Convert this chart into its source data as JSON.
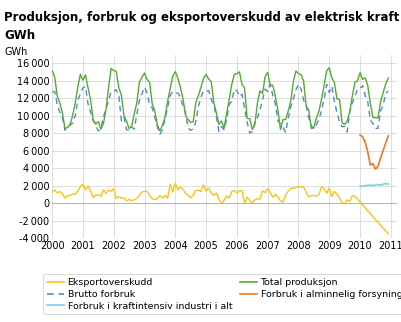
{
  "title_line1": "Produksjon, forbruk og eksportoverskudd av elektrisk kraft per måned.",
  "title_line2": "GWh",
  "ylabel": "GWh",
  "ylim": [
    -4000,
    17000
  ],
  "yticks": [
    -4000,
    -2000,
    0,
    2000,
    4000,
    6000,
    8000,
    10000,
    12000,
    14000,
    16000
  ],
  "xlim_start": 2000.0,
  "xlim_end": 2011.2,
  "background_color": "#ffffff",
  "grid_color": "#d0d0d0",
  "title_fontsize": 8.5,
  "axis_fontsize": 7,
  "legend_fontsize": 6.8,
  "colors": {
    "eksport": "#f5c518",
    "kraft_ind": "#7dcfee",
    "alm_fors": "#f07820",
    "brutto": "#5588cc",
    "total": "#55aa33"
  }
}
